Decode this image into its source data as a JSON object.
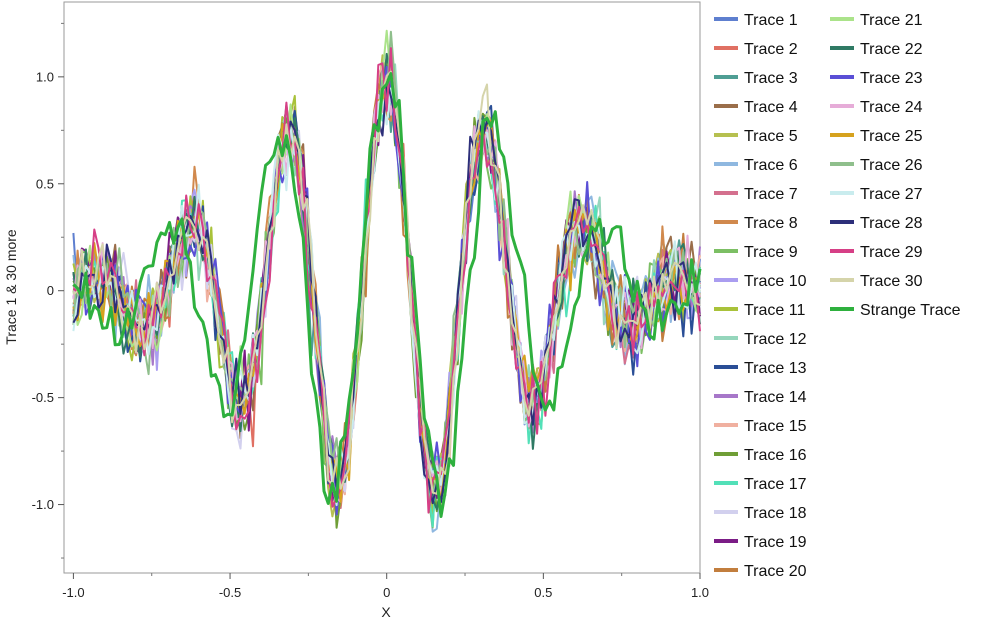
{
  "chart_data": {
    "type": "line",
    "xlabel": "X",
    "ylabel": "Trace 1 & 30 more",
    "xlim": [
      -1.03,
      1.0
    ],
    "ylim": [
      -1.32,
      1.35
    ],
    "x_ticks": [
      -1.0,
      -0.5,
      0,
      0.5,
      1.0
    ],
    "x_tick_labels": [
      "-1.0",
      "-0.5",
      "0",
      "0.5",
      "1.0"
    ],
    "y_ticks": [
      -1.0,
      -0.5,
      0,
      0.5,
      1.0
    ],
    "y_tick_labels": [
      "-1.0",
      "-0.5",
      "0",
      "0.5",
      "1.0"
    ],
    "grid": false,
    "legend_position": "right",
    "model_curve": "y = cos(20x) * exp(-3x^2) + noise",
    "x_start": -1.0,
    "x_end": 1.0,
    "points_per_trace": 151,
    "series": [
      {
        "name": "Trace 1",
        "color": "#5e7fcf"
      },
      {
        "name": "Trace 2",
        "color": "#e07063"
      },
      {
        "name": "Trace 3",
        "color": "#4f9e94"
      },
      {
        "name": "Trace 4",
        "color": "#9a6e4a"
      },
      {
        "name": "Trace 5",
        "color": "#b6c050"
      },
      {
        "name": "Trace 6",
        "color": "#8fb8e0"
      },
      {
        "name": "Trace 7",
        "color": "#d4708e"
      },
      {
        "name": "Trace 8",
        "color": "#d1894d"
      },
      {
        "name": "Trace 9",
        "color": "#7cbf64"
      },
      {
        "name": "Trace 10",
        "color": "#aa9df0"
      },
      {
        "name": "Trace 11",
        "color": "#a9c23a"
      },
      {
        "name": "Trace 12",
        "color": "#95d6bc"
      },
      {
        "name": "Trace 13",
        "color": "#2a4e96"
      },
      {
        "name": "Trace 14",
        "color": "#a777c9"
      },
      {
        "name": "Trace 15",
        "color": "#f0b0a0"
      },
      {
        "name": "Trace 16",
        "color": "#6f9e36"
      },
      {
        "name": "Trace 17",
        "color": "#52e0b8"
      },
      {
        "name": "Trace 18",
        "color": "#d2d0ee"
      },
      {
        "name": "Trace 19",
        "color": "#7b1c86"
      },
      {
        "name": "Trace 20",
        "color": "#c27e3e"
      },
      {
        "name": "Trace 21",
        "color": "#abe38a"
      },
      {
        "name": "Trace 22",
        "color": "#2f7a64"
      },
      {
        "name": "Trace 23",
        "color": "#5a4fd6"
      },
      {
        "name": "Trace 24",
        "color": "#e6acd8"
      },
      {
        "name": "Trace 25",
        "color": "#d6a21e"
      },
      {
        "name": "Trace 26",
        "color": "#8fbf8c"
      },
      {
        "name": "Trace 27",
        "color": "#c9ecee"
      },
      {
        "name": "Trace 28",
        "color": "#2d2f7a"
      },
      {
        "name": "Trace 29",
        "color": "#d63f86"
      },
      {
        "name": "Trace 30",
        "color": "#d5d4aa"
      },
      {
        "name": "Strange Trace",
        "color": "#2eb03e"
      }
    ]
  }
}
